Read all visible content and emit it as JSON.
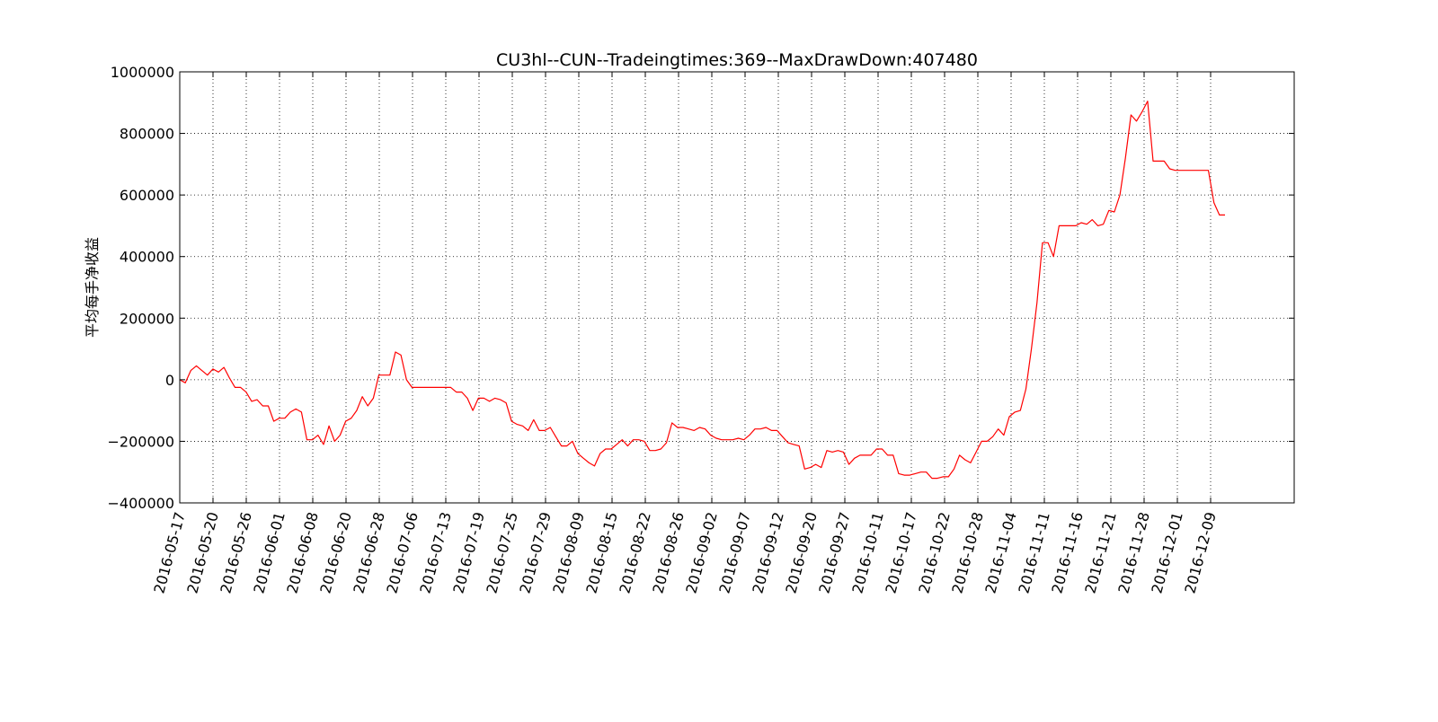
{
  "chart_data": {
    "type": "line",
    "title": "CU3hl--CUN--Tradeingtimes:369--MaxDrawDown:407480",
    "xlabel": "",
    "ylabel": "平均每手净收益",
    "ylim": [
      -400000,
      1000000
    ],
    "yticks": [
      1000000,
      800000,
      600000,
      400000,
      200000,
      0,
      -200000,
      -400000
    ],
    "ytick_labels": [
      "1000000",
      "800000",
      "600000",
      "400000",
      "200000",
      "0",
      "−200000",
      "−400000"
    ],
    "xticks": [
      "2016-05-17",
      "2016-05-20",
      "2016-05-26",
      "2016-06-01",
      "2016-06-08",
      "2016-06-20",
      "2016-06-28",
      "2016-07-06",
      "2016-07-13",
      "2016-07-19",
      "2016-07-25",
      "2016-07-29",
      "2016-08-09",
      "2016-08-15",
      "2016-08-22",
      "2016-08-26",
      "2016-09-02",
      "2016-09-07",
      "2016-09-12",
      "2016-09-20",
      "2016-09-27",
      "2016-10-11",
      "2016-10-17",
      "2016-10-22",
      "2016-10-28",
      "2016-11-04",
      "2016-11-11",
      "2016-11-16",
      "2016-11-21",
      "2016-11-28",
      "2016-12-01",
      "2016-12-09"
    ],
    "grid": true,
    "line_color": "#ff0000",
    "series": [
      {
        "values": [
          0,
          -10000,
          30000,
          45000,
          30000,
          15000,
          35000,
          25000,
          40000,
          5000,
          -25000,
          -25000,
          -40000,
          -70000,
          -65000,
          -85000,
          -85000,
          -135000,
          -125000,
          -125000,
          -105000,
          -95000,
          -105000,
          -195000,
          -195000,
          -180000,
          -210000,
          -150000,
          -200000,
          -180000,
          -135000,
          -125000,
          -100000,
          -55000,
          -85000,
          -60000,
          15000,
          15000,
          15000,
          90000,
          80000,
          0,
          -25000,
          -25000,
          -25000,
          -25000,
          -25000,
          -25000,
          -25000,
          -25000,
          -40000,
          -40000,
          -60000,
          -100000,
          -60000,
          -60000,
          -70000,
          -60000,
          -65000,
          -75000,
          -135000,
          -145000,
          -150000,
          -165000,
          -130000,
          -165000,
          -165000,
          -155000,
          -185000,
          -215000,
          -215000,
          -200000,
          -240000,
          -255000,
          -270000,
          -280000,
          -240000,
          -225000,
          -225000,
          -210000,
          -195000,
          -215000,
          -195000,
          -195000,
          -200000,
          -230000,
          -230000,
          -225000,
          -205000,
          -140000,
          -155000,
          -155000,
          -160000,
          -165000,
          -155000,
          -160000,
          -180000,
          -190000,
          -195000,
          -195000,
          -195000,
          -190000,
          -195000,
          -180000,
          -160000,
          -160000,
          -155000,
          -165000,
          -165000,
          -185000,
          -205000,
          -210000,
          -215000,
          -290000,
          -285000,
          -275000,
          -285000,
          -230000,
          -235000,
          -230000,
          -235000,
          -275000,
          -255000,
          -245000,
          -245000,
          -245000,
          -225000,
          -225000,
          -245000,
          -245000,
          -305000,
          -310000,
          -310000,
          -305000,
          -300000,
          -300000,
          -320000,
          -320000,
          -315000,
          -315000,
          -290000,
          -245000,
          -260000,
          -270000,
          -235000,
          -200000,
          -200000,
          -185000,
          -160000,
          -180000,
          -120000,
          -105000,
          -100000,
          -30000,
          100000,
          250000,
          445000,
          445000,
          400000,
          500000,
          500000,
          500000,
          500000,
          510000,
          505000,
          520000,
          500000,
          505000,
          550000,
          545000,
          600000,
          720000,
          860000,
          840000,
          870000,
          905000,
          710000,
          710000,
          710000,
          685000,
          680000,
          680000,
          680000,
          680000,
          680000,
          680000,
          680000,
          575000,
          535000,
          535000
        ]
      }
    ]
  }
}
